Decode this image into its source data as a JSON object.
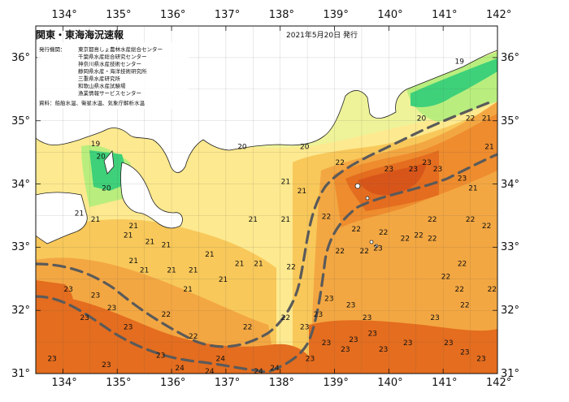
{
  "header": {
    "title": "関東・東海海況速報",
    "date": "2021年5月20日 発行"
  },
  "credits": {
    "issuer_label": "発行機関：",
    "agencies": [
      "東京都島しょ農林水産総合センター",
      "千葉県水産総合研究センター",
      "神奈川県水産技術センター",
      "静岡県水産・海洋技術研究所",
      "三重県水産研究所",
      "和歌山県水産試験場",
      "漁業情報サービスセンター"
    ],
    "source": "資料：船舶水温、衛星水温、気象庁解析水温"
  },
  "axes": {
    "lon_labels": [
      "134°",
      "135°",
      "136°",
      "137°",
      "138°",
      "139°",
      "140°",
      "141°",
      "142°"
    ],
    "lat_labels": [
      "36°",
      "35°",
      "34°",
      "33°",
      "32°",
      "31°"
    ]
  },
  "colors": {
    "c19": "#3ed17a",
    "c20": "#b9ee7e",
    "c21": "#fde98f",
    "c215": "#f8c85a",
    "c22": "#f3a742",
    "c225": "#ee8c2e",
    "c23": "#e46d1f",
    "c235": "#d8551a",
    "land": "#ffffff",
    "current": "#5a5a5a"
  },
  "temperature_labels": [
    {
      "t": "19",
      "lon": 141.3,
      "lat": 35.9
    },
    {
      "t": "19",
      "lon": 134.6,
      "lat": 34.6
    },
    {
      "t": "20",
      "lon": 134.7,
      "lat": 34.4
    },
    {
      "t": "20",
      "lon": 134.8,
      "lat": 33.9
    },
    {
      "t": "20",
      "lon": 137.3,
      "lat": 34.55
    },
    {
      "t": "20",
      "lon": 138.45,
      "lat": 34.55
    },
    {
      "t": "20",
      "lon": 140.6,
      "lat": 35.0
    },
    {
      "t": "21",
      "lon": 134.3,
      "lat": 33.5
    },
    {
      "t": "21",
      "lon": 134.6,
      "lat": 33.4
    },
    {
      "t": "21",
      "lon": 135.3,
      "lat": 33.3
    },
    {
      "t": "21",
      "lon": 135.2,
      "lat": 33.15
    },
    {
      "t": "21",
      "lon": 135.6,
      "lat": 33.05
    },
    {
      "t": "21",
      "lon": 135.9,
      "lat": 33.0
    },
    {
      "t": "21",
      "lon": 135.3,
      "lat": 32.75
    },
    {
      "t": "21",
      "lon": 135.5,
      "lat": 32.6
    },
    {
      "t": "21",
      "lon": 136.0,
      "lat": 32.6
    },
    {
      "t": "21",
      "lon": 136.4,
      "lat": 32.6
    },
    {
      "t": "21",
      "lon": 136.7,
      "lat": 32.85
    },
    {
      "t": "21",
      "lon": 136.95,
      "lat": 32.45
    },
    {
      "t": "21",
      "lon": 136.3,
      "lat": 32.3
    },
    {
      "t": "21",
      "lon": 137.25,
      "lat": 32.7
    },
    {
      "t": "21",
      "lon": 137.5,
      "lat": 33.4
    },
    {
      "t": "21",
      "lon": 137.6,
      "lat": 32.7
    },
    {
      "t": "21",
      "lon": 138.1,
      "lat": 34.0
    },
    {
      "t": "21",
      "lon": 138.1,
      "lat": 33.4
    },
    {
      "t": "21",
      "lon": 138.4,
      "lat": 33.85
    },
    {
      "t": "21",
      "lon": 141.55,
      "lat": 33.9
    },
    {
      "t": "21",
      "lon": 141.85,
      "lat": 34.55
    },
    {
      "t": "21",
      "lon": 141.8,
      "lat": 35.0
    },
    {
      "t": "22",
      "lon": 138.2,
      "lat": 32.65
    },
    {
      "t": "22",
      "lon": 138.85,
      "lat": 33.45
    },
    {
      "t": "22",
      "lon": 139.1,
      "lat": 34.3
    },
    {
      "t": "22",
      "lon": 139.1,
      "lat": 32.9
    },
    {
      "t": "22",
      "lon": 139.4,
      "lat": 33.25
    },
    {
      "t": "22",
      "lon": 139.55,
      "lat": 32.9
    },
    {
      "t": "22",
      "lon": 139.9,
      "lat": 33.2
    },
    {
      "t": "22",
      "lon": 140.3,
      "lat": 33.1
    },
    {
      "t": "22",
      "lon": 140.55,
      "lat": 33.15
    },
    {
      "t": "22",
      "lon": 140.8,
      "lat": 33.1
    },
    {
      "t": "22",
      "lon": 141.05,
      "lat": 32.5
    },
    {
      "t": "22",
      "lon": 141.3,
      "lat": 32.3
    },
    {
      "t": "22",
      "lon": 141.35,
      "lat": 32.7
    },
    {
      "t": "22",
      "lon": 141.4,
      "lat": 32.05
    },
    {
      "t": "22",
      "lon": 141.5,
      "lat": 33.4
    },
    {
      "t": "22",
      "lon": 141.8,
      "lat": 33.3
    },
    {
      "t": "22",
      "lon": 141.5,
      "lat": 35.0
    },
    {
      "t": "22",
      "lon": 141.9,
      "lat": 32.3
    },
    {
      "t": "22",
      "lon": 140.8,
      "lat": 33.4
    },
    {
      "t": "22",
      "lon": 135.9,
      "lat": 31.9
    },
    {
      "t": "22",
      "lon": 137.4,
      "lat": 31.7
    },
    {
      "t": "22",
      "lon": 138.1,
      "lat": 31.85
    },
    {
      "t": "22",
      "lon": 136.4,
      "lat": 31.55
    },
    {
      "t": "23",
      "lon": 138.9,
      "lat": 32.15
    },
    {
      "t": "23",
      "lon": 139.3,
      "lat": 32.05
    },
    {
      "t": "23",
      "lon": 139.6,
      "lat": 31.85
    },
    {
      "t": "23",
      "lon": 139.7,
      "lat": 31.6
    },
    {
      "t": "23",
      "lon": 139.9,
      "lat": 31.35
    },
    {
      "t": "23",
      "lon": 139.35,
      "lat": 31.5
    },
    {
      "t": "23",
      "lon": 139.2,
      "lat": 31.35
    },
    {
      "t": "23",
      "lon": 138.85,
      "lat": 31.45
    },
    {
      "t": "23",
      "lon": 138.55,
      "lat": 31.2
    },
    {
      "t": "23",
      "lon": 138.45,
      "lat": 31.7
    },
    {
      "t": "23",
      "lon": 138.7,
      "lat": 31.9
    },
    {
      "t": "23",
      "lon": 140.0,
      "lat": 34.2
    },
    {
      "t": "23",
      "lon": 140.45,
      "lat": 34.2
    },
    {
      "t": "23",
      "lon": 140.9,
      "lat": 34.2
    },
    {
      "t": "23",
      "lon": 140.7,
      "lat": 34.3
    },
    {
      "t": "23",
      "lon": 141.35,
      "lat": 34.05
    },
    {
      "t": "23",
      "lon": 139.8,
      "lat": 32.95
    },
    {
      "t": "23",
      "lon": 140.35,
      "lat": 31.45
    },
    {
      "t": "23",
      "lon": 141.1,
      "lat": 31.45
    },
    {
      "t": "23",
      "lon": 141.4,
      "lat": 31.3
    },
    {
      "t": "23",
      "lon": 141.7,
      "lat": 31.2
    },
    {
      "t": "23",
      "lon": 140.85,
      "lat": 31.85
    },
    {
      "t": "23",
      "lon": 134.1,
      "lat": 32.3
    },
    {
      "t": "23",
      "lon": 134.6,
      "lat": 32.2
    },
    {
      "t": "23",
      "lon": 134.9,
      "lat": 32.0
    },
    {
      "t": "23",
      "lon": 134.4,
      "lat": 31.85
    },
    {
      "t": "23",
      "lon": 135.2,
      "lat": 31.7
    },
    {
      "t": "23",
      "lon": 133.8,
      "lat": 31.2
    },
    {
      "t": "23",
      "lon": 134.8,
      "lat": 31.1
    },
    {
      "t": "23",
      "lon": 135.8,
      "lat": 31.25
    },
    {
      "t": "24",
      "lon": 136.9,
      "lat": 31.2
    },
    {
      "t": "24",
      "lon": 136.7,
      "lat": 31.0
    },
    {
      "t": "24",
      "lon": 137.9,
      "lat": 31.05
    },
    {
      "t": "24",
      "lon": 137.6,
      "lat": 31.0
    },
    {
      "t": "24",
      "lon": 136.15,
      "lat": 31.05
    }
  ]
}
